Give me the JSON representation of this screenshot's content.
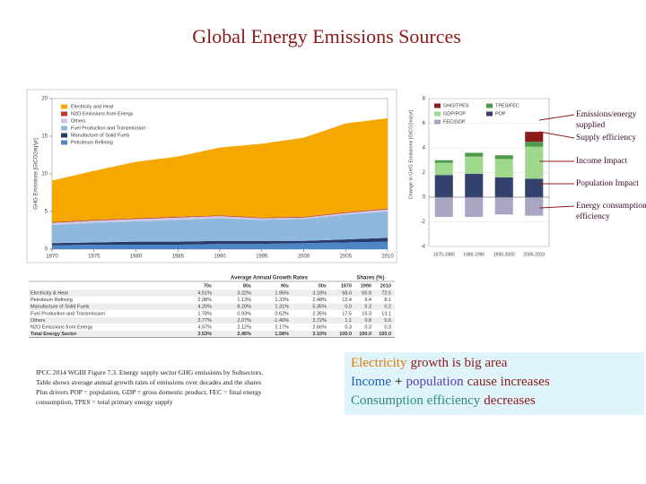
{
  "title": "Global Energy Emissions Sources",
  "chart_data": [
    {
      "type": "area",
      "y_label": "GHG Emissions [GtCO2eq/yr]",
      "x": [
        1970,
        1975,
        1980,
        1985,
        1990,
        1995,
        2000,
        2005,
        2010
      ],
      "xlim": [
        1970,
        2010
      ],
      "xticks": [
        1970,
        1975,
        1980,
        1985,
        1990,
        1995,
        2000,
        2005,
        2010
      ],
      "ylim": [
        0,
        20
      ],
      "yticks": [
        0,
        5,
        10,
        15,
        20
      ],
      "series": [
        {
          "name": "Petroleum Refining",
          "color": "#4d86c6",
          "values": [
            0.5,
            0.6,
            0.6,
            0.6,
            0.7,
            0.7,
            0.8,
            0.9,
            1.0
          ]
        },
        {
          "name": "Manufacture of Solid Fuels",
          "color": "#2b3a6e",
          "values": [
            0.3,
            0.3,
            0.4,
            0.4,
            0.4,
            0.4,
            0.3,
            0.4,
            0.5
          ]
        },
        {
          "name": "Fuel Production and Transmission",
          "color": "#8fb8de",
          "values": [
            2.4,
            2.6,
            2.7,
            2.9,
            3.0,
            2.8,
            2.9,
            3.3,
            3.5
          ]
        },
        {
          "name": "Others",
          "color": "#cdc8e2",
          "values": [
            0.3,
            0.3,
            0.3,
            0.3,
            0.3,
            0.2,
            0.2,
            0.2,
            0.3
          ]
        },
        {
          "name": "N2O Emissions from Energy",
          "color": "#c0392b",
          "values": [
            0.1,
            0.1,
            0.1,
            0.1,
            0.1,
            0.1,
            0.1,
            0.1,
            0.1
          ]
        },
        {
          "name": "Electricity and Heat",
          "color": "#f5a800",
          "values": [
            5.5,
            6.5,
            7.5,
            8.0,
            9.0,
            9.8,
            10.5,
            11.8,
            12.0
          ]
        }
      ]
    },
    {
      "type": "stacked-bar",
      "y_label": "Change in GHG Emissions [GtCO2eq/yr]",
      "categories": [
        "1970-1980",
        "1980-1990",
        "1990-2000",
        "2000-2010"
      ],
      "ylim": [
        -4,
        8
      ],
      "yticks": [
        -4,
        -2,
        0,
        2,
        4,
        6,
        8
      ],
      "series": [
        {
          "name": "FEC/GDP",
          "color": "#a9a6c4",
          "values": [
            -1.6,
            -1.6,
            -1.4,
            -1.5
          ]
        },
        {
          "name": "POP",
          "color": "#34416f",
          "values": [
            1.8,
            1.9,
            1.6,
            1.5
          ]
        },
        {
          "name": "GDP/POP",
          "color": "#9fd88c",
          "values": [
            1.0,
            1.4,
            1.5,
            2.6
          ]
        },
        {
          "name": "TPES/FEC",
          "color": "#4e9a4e",
          "values": [
            0.2,
            0.3,
            0.3,
            0.4
          ]
        },
        {
          "name": "GHG/TPES",
          "color": "#8b1a1a",
          "values": [
            0,
            0,
            0,
            0.8
          ]
        }
      ]
    }
  ],
  "callouts": [
    {
      "lines": [
        "Emissions/energy",
        "supplied"
      ]
    },
    {
      "lines": [
        "Supply efficiency"
      ]
    },
    {
      "lines": [
        "Income Impact"
      ]
    },
    {
      "lines": [
        "Population Impact"
      ]
    },
    {
      "lines": [
        "Energy consumption",
        "efficiency"
      ]
    }
  ],
  "table": {
    "group_headers": [
      "Average Annual Growth Rates",
      "Shares (%)"
    ],
    "columns": [
      "70s",
      "80s",
      "90s",
      "00s",
      "1970",
      "1990",
      "2010"
    ],
    "rows": [
      [
        "Electricity & Heat",
        "4.51%",
        "3.22%",
        "1.95%",
        "3.18%",
        "58.0",
        "65.9",
        "72.5"
      ],
      [
        "Petroleum Refining",
        "2.08%",
        "1.13%",
        "1.33%",
        "2.48%",
        "12.4",
        "9.4",
        "8.1"
      ],
      [
        "Manufacture of Solid Fuels",
        "4.20%",
        "8.20%",
        "1.31%",
        "5.35%",
        "0.0",
        "0.3",
        "0.2"
      ],
      [
        "Fuel Production and Transmission",
        "1.78%",
        "0.93%",
        "0.62%",
        "2.35%",
        "17.5",
        "15.3",
        "13.1"
      ],
      [
        "Others",
        "3.77%",
        "2.07%",
        "-1.40%",
        "3.72%",
        "1.1",
        "0.8",
        "0.6"
      ],
      [
        "N2O Emissions from Energy",
        "4.57%",
        "2.12%",
        "2.17%",
        "2.66%",
        "0.3",
        "0.3",
        "0.3"
      ],
      [
        "Total Energy Sector",
        "3.53%",
        "2.45%",
        "1.58%",
        "3.10%",
        "100.0",
        "100.0",
        "100.0"
      ]
    ]
  },
  "caption": [
    "IPCC 2014 WGIII Figure 7.3. Energy supply sector GHG emissions by Subsectors.",
    "Table shows average annual growth rates of emissions over decades and the shares",
    "Plus drivers POP = population, GDP = gross domestic product, FEC = final energy",
    "consumption, TPES = total primary energy supply"
  ],
  "summary": [
    [
      {
        "text": "Electricity",
        "color": "#e07b00"
      },
      {
        "text": "growth is big area",
        "color": "#8b1a1a"
      }
    ],
    [
      {
        "text": "Income",
        "color": "#1f5fbf"
      },
      {
        "text": "+",
        "color": "#000000"
      },
      {
        "text": "population",
        "color": "#5b3fb0"
      },
      {
        "text": "cause increases",
        "color": "#8b1a1a"
      }
    ],
    [
      {
        "text": "Consumption efficiency",
        "color": "#2e8b7a"
      },
      {
        "text": "decreases",
        "color": "#8b1a1a"
      }
    ]
  ]
}
